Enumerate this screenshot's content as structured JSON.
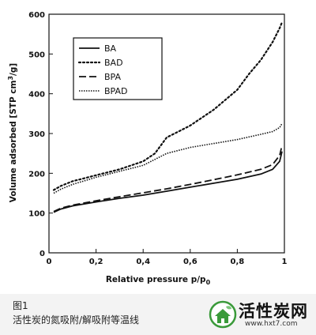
{
  "chart_data": {
    "type": "line",
    "xlabel": "Relative pressure p/p",
    "xlabel_sub": "0",
    "ylabel": "Volume adsorbed [STP cm",
    "ylabel_sup": "3",
    "ylabel_end": "/g]",
    "xlim": [
      0,
      1
    ],
    "ylim": [
      0,
      600
    ],
    "x_ticks": [
      0,
      0.2,
      0.4,
      0.6,
      0.8,
      1
    ],
    "x_tick_labels": [
      "0",
      "0,2",
      "0,4",
      "0,6",
      "0,8",
      "1"
    ],
    "y_ticks": [
      0,
      100,
      200,
      300,
      400,
      500,
      600
    ],
    "y_tick_labels": [
      "0",
      "100",
      "200",
      "300",
      "400",
      "500",
      "600"
    ],
    "grid": false,
    "legend_position": "top-left",
    "series": [
      {
        "name": "BA",
        "style": "solid",
        "x": [
          0.02,
          0.05,
          0.1,
          0.2,
          0.3,
          0.4,
          0.5,
          0.6,
          0.7,
          0.8,
          0.9,
          0.95,
          0.98,
          0.99
        ],
        "y": [
          102,
          110,
          118,
          128,
          137,
          145,
          155,
          165,
          175,
          185,
          198,
          210,
          230,
          255
        ]
      },
      {
        "name": "BAD",
        "style": "dotted",
        "x": [
          0.02,
          0.05,
          0.1,
          0.2,
          0.3,
          0.4,
          0.45,
          0.5,
          0.55,
          0.6,
          0.7,
          0.8,
          0.85,
          0.9,
          0.95,
          0.98,
          0.99
        ],
        "y": [
          158,
          168,
          180,
          195,
          210,
          230,
          250,
          290,
          305,
          320,
          360,
          410,
          450,
          485,
          530,
          565,
          580
        ]
      },
      {
        "name": "BPA",
        "style": "dashed",
        "x": [
          0.02,
          0.05,
          0.1,
          0.2,
          0.3,
          0.4,
          0.5,
          0.6,
          0.7,
          0.8,
          0.9,
          0.95,
          0.98,
          0.99
        ],
        "y": [
          104,
          112,
          120,
          131,
          141,
          151,
          161,
          172,
          184,
          196,
          210,
          222,
          245,
          270
        ]
      },
      {
        "name": "BPAD",
        "style": "dense-dotted",
        "x": [
          0.02,
          0.05,
          0.1,
          0.2,
          0.3,
          0.4,
          0.5,
          0.6,
          0.7,
          0.8,
          0.9,
          0.95,
          0.98,
          0.99
        ],
        "y": [
          150,
          160,
          172,
          190,
          205,
          220,
          250,
          265,
          275,
          285,
          298,
          305,
          315,
          325
        ]
      }
    ]
  },
  "caption": {
    "label": "图1",
    "text": "活性炭的氮吸附/解吸附等温线"
  },
  "brand": {
    "name": "活性炭网",
    "url": "www.hxt7.com"
  },
  "colors": {
    "line": "#111111",
    "logo_green": "#3a9a3a",
    "page_bg": "#f3f3f3"
  }
}
